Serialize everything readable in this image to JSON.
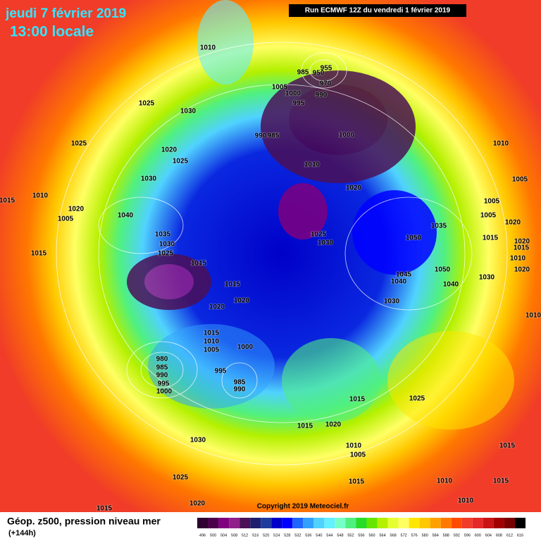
{
  "header": {
    "date": "jeudi 7 février 2019",
    "time": "13:00 locale",
    "run": "Run ECMWF 12Z du vendredi 1 février 2019"
  },
  "copyright": "Copyright 2019 Meteociel.fr",
  "legend": {
    "title": "Géop. z500, pression niveau mer",
    "lead": "(+144h)",
    "values": [
      496,
      500,
      504,
      508,
      512,
      516,
      520,
      524,
      528,
      532,
      536,
      540,
      544,
      548,
      552,
      556,
      560,
      564,
      568,
      572,
      576,
      580,
      584,
      588,
      592,
      596,
      600,
      604,
      608,
      612,
      616
    ],
    "colors": [
      "#300030",
      "#4a004a",
      "#800080",
      "#90208a",
      "#4b1055",
      "#1e1e6e",
      "#1e3c9e",
      "#0000c8",
      "#0000ff",
      "#1e64ff",
      "#32a0ff",
      "#50d2ff",
      "#64f0ff",
      "#78ffc8",
      "#50f080",
      "#28dc28",
      "#64e600",
      "#b4f000",
      "#e6ff32",
      "#ffff64",
      "#ffe600",
      "#ffc800",
      "#ffa000",
      "#ff7800",
      "#ff4b00",
      "#f03c28",
      "#e62828",
      "#c81414",
      "#a00000",
      "#780000",
      "#000000"
    ]
  },
  "isobar_labels": [
    1010,
    1025,
    1030,
    1025,
    1020,
    1025,
    1030,
    1010,
    1015,
    1020,
    1005,
    1040,
    1035,
    1030,
    1025,
    1015,
    1015,
    1015,
    1020,
    1020,
    1015,
    1010,
    1005,
    1000,
    980,
    985,
    990,
    995,
    1000,
    995,
    985,
    990,
    1005,
    1000,
    995,
    990,
    985,
    955,
    950,
    985,
    970,
    990,
    1000,
    1010,
    1020,
    1025,
    1030,
    1035,
    1050,
    1045,
    1040,
    1050,
    1040,
    1030,
    1030,
    1010,
    1005,
    1005,
    1005,
    1015,
    1020,
    1020,
    1015,
    1010,
    1020,
    1010,
    1015,
    1025,
    1015,
    1020,
    1010,
    1005,
    1015,
    1030,
    1025,
    1020,
    1015,
    1010,
    1015,
    1010,
    1015
  ]
}
